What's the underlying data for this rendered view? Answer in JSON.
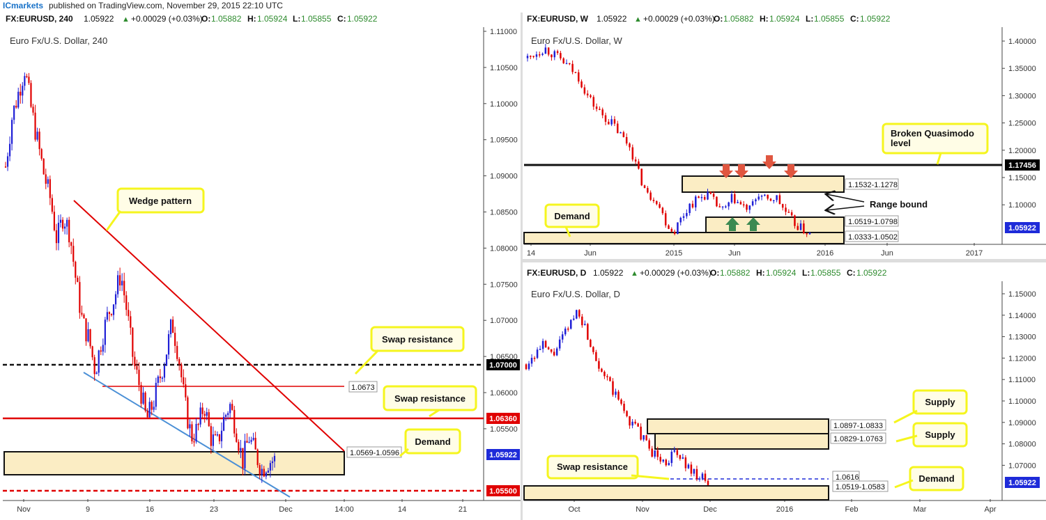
{
  "header": {
    "brand": "ICmarkets",
    "published": "published on TradingView.com, November 29, 2015 22:10 UTC"
  },
  "colors": {
    "up": "#1f1fd6",
    "down": "#e00000",
    "zone_fill": "#fbedc4",
    "callout_border": "#f5f51e",
    "callout_fill": "#fffde6",
    "price_tag": "#1e2bd9",
    "arrow_red": "#e05640",
    "arrow_green": "#3c8a52"
  },
  "panels": {
    "h4": {
      "symbol": "FX:EURUSD, 240",
      "quote": "1.05922",
      "change": "+0.00029 (+0.03%)",
      "o": "1.05882",
      "h": "1.05924",
      "l": "1.05855",
      "c": "1.05922",
      "title": "Euro Fx/U.S. Dollar, 240",
      "x_labels": [
        "Nov",
        "9",
        "16",
        "23",
        "Dec",
        "14:00",
        "14",
        "21"
      ],
      "y_labels": [
        "1.11000",
        "1.10500",
        "1.10000",
        "1.09500",
        "1.09000",
        "1.08500",
        "1.08000",
        "1.07500",
        "1.07000",
        "1.06500",
        "1.06000",
        "1.05500"
      ],
      "tags": {
        "l1": "1.07000",
        "l2": "1.06360",
        "l3": "1.05922",
        "l4": "1.05500"
      },
      "zone_label": "1.0569-1.0596",
      "level_label": "1.0673",
      "callouts": {
        "wedge": "Wedge pattern",
        "swap1": "Swap resistance",
        "swap2": "Swap resistance",
        "demand": "Demand"
      }
    },
    "weekly": {
      "symbol": "FX:EURUSD, W",
      "quote": "1.05922",
      "change": "+0.00029 (+0.03%)",
      "o": "1.05882",
      "h": "1.05924",
      "l": "1.05855",
      "c": "1.05922",
      "title": "Euro Fx/U.S. Dollar, W",
      "x_labels": [
        "14",
        "Jun",
        "2015",
        "Jun",
        "2016",
        "Jun",
        "2017"
      ],
      "y_labels": [
        "1.40000",
        "1.35000",
        "1.30000",
        "1.25000",
        "1.20000",
        "1.15000",
        "1.10000",
        "1.05000"
      ],
      "tags": {
        "l1": "1.17456",
        "l2": "1.05922"
      },
      "zone_labels": [
        "1.1532-1.1278",
        "1.0519-1.0798",
        "1.0333-1.0502"
      ],
      "callouts": {
        "bq_line1": "Broken Quasimodo",
        "bq_line2": "level",
        "demand": "Demand"
      },
      "range_label": "Range bound"
    },
    "daily": {
      "symbol": "FX:EURUSD, D",
      "quote": "1.05922",
      "change": "+0.00029 (+0.03%)",
      "o": "1.05882",
      "h": "1.05924",
      "l": "1.05855",
      "c": "1.05922",
      "title": "Euro Fx/U.S. Dollar, D",
      "x_labels": [
        "Oct",
        "Nov",
        "Dec",
        "2016",
        "Feb",
        "Mar",
        "Apr"
      ],
      "y_labels": [
        "1.15000",
        "1.14000",
        "1.13000",
        "1.12000",
        "1.11000",
        "1.10000",
        "1.09000",
        "1.08000",
        "1.07000"
      ],
      "tags": {
        "l1": "1.05922"
      },
      "zone_labels": [
        "1.0897-1.0833",
        "1.0829-1.0763",
        "1.0616",
        "1.0519-1.0583"
      ],
      "callouts": {
        "supply1": "Supply",
        "supply2": "Supply",
        "swap": "Swap resistance",
        "demand": "Demand"
      }
    }
  },
  "chart_data": [
    {
      "type": "candlestick",
      "title": "Euro Fx/U.S. Dollar, 240",
      "ylim": [
        1.0545,
        1.1115
      ],
      "levels": [
        1.07,
        1.0636,
        1.055
      ],
      "zones": [
        [
          1.0569,
          1.0596
        ]
      ],
      "segments": [
        {
          "name": "wedge-upper",
          "from": [
            "Nov 8",
            1.09
          ],
          "to": [
            "Dec 1",
            1.0598
          ]
        },
        {
          "name": "wedge-lower",
          "from": [
            "Nov 10",
            1.0687
          ],
          "to": [
            "Dec 1",
            1.0552
          ]
        },
        {
          "name": "swap-level",
          "from": [
            "Nov 10",
            1.0673
          ],
          "to": [
            "Dec 5",
            1.0673
          ]
        }
      ],
      "path": [
        1.095,
        1.101,
        1.104,
        1.107,
        1.102,
        1.098,
        1.094,
        1.091,
        1.086,
        1.089,
        1.087,
        1.081,
        1.076,
        1.074,
        1.07,
        1.074,
        1.077,
        1.079,
        1.082,
        1.077,
        1.071,
        1.068,
        1.064,
        1.066,
        1.069,
        1.072,
        1.076,
        1.072,
        1.066,
        1.062,
        1.063,
        1.066,
        1.062,
        1.061,
        1.064,
        1.066,
        1.063,
        1.059,
        1.062,
        1.06,
        1.058,
        1.059,
        1.0592
      ]
    },
    {
      "type": "candlestick",
      "title": "Euro Fx/U.S. Dollar, W",
      "ylim": [
        1.045,
        1.415
      ],
      "levels": [
        1.17456
      ],
      "zones": [
        [
          1.1278,
          1.1532
        ],
        [
          1.0519,
          1.0798
        ],
        [
          1.0333,
          1.0502
        ]
      ],
      "path": [
        1.37,
        1.38,
        1.388,
        1.377,
        1.366,
        1.352,
        1.336,
        1.304,
        1.282,
        1.266,
        1.253,
        1.232,
        1.214,
        1.166,
        1.128,
        1.124,
        1.086,
        1.062,
        1.088,
        1.112,
        1.122,
        1.131,
        1.112,
        1.099,
        1.124,
        1.109,
        1.102,
        1.131,
        1.116,
        1.126,
        1.102,
        1.081,
        1.069,
        1.0592
      ]
    },
    {
      "type": "candlestick",
      "title": "Euro Fx/U.S. Dollar, D",
      "ylim": [
        1.0525,
        1.1545
      ],
      "levels": [
        1.0616
      ],
      "zones": [
        [
          1.0833,
          1.0897
        ],
        [
          1.0763,
          1.0829
        ],
        [
          1.0519,
          1.0583
        ]
      ],
      "path": [
        1.117,
        1.122,
        1.126,
        1.121,
        1.128,
        1.136,
        1.144,
        1.132,
        1.121,
        1.112,
        1.104,
        1.097,
        1.089,
        1.085,
        1.077,
        1.073,
        1.069,
        1.074,
        1.071,
        1.066,
        1.063,
        1.0592
      ]
    }
  ]
}
